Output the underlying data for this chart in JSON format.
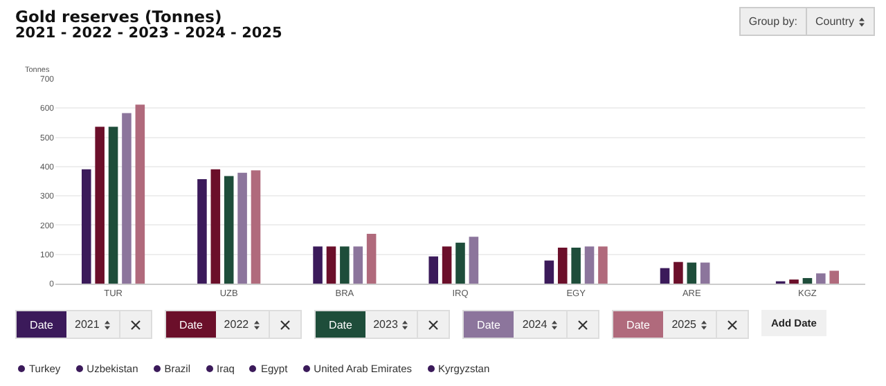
{
  "chart_data": {
    "type": "bar",
    "title": "Gold reserves (Tonnes)",
    "subtitle": "2021 - 2022 - 2023 - 2024 - 2025",
    "ylabel": "Tonnes",
    "categories": [
      "TUR",
      "UZB",
      "BRA",
      "IRQ",
      "EGY",
      "ARE",
      "KGZ"
    ],
    "series": [
      {
        "name": "2021",
        "color": "#3b1a5a",
        "values": [
          391,
          357,
          127,
          93,
          79,
          53,
          8
        ]
      },
      {
        "name": "2022",
        "color": "#6b0f2a",
        "values": [
          536,
          391,
          127,
          127,
          123,
          74,
          14
        ]
      },
      {
        "name": "2023",
        "color": "#1e4d3a",
        "values": [
          536,
          368,
          127,
          140,
          123,
          72,
          19
        ]
      },
      {
        "name": "2024",
        "color": "#8c759c",
        "values": [
          583,
          379,
          127,
          160,
          127,
          72,
          35
        ]
      },
      {
        "name": "2025",
        "color": "#b06a7c",
        "values": [
          612,
          387,
          170,
          null,
          127,
          null,
          44
        ]
      }
    ],
    "ylim": [
      0,
      700
    ],
    "yticks": [
      0,
      100,
      200,
      300,
      400,
      500,
      600,
      700
    ],
    "grid": "y",
    "legend": "bottom",
    "annotations": [
      "Group by:",
      "Country",
      "Date",
      "Add Date",
      "Turkey",
      "Uzbekistan",
      "Brazil",
      "Iraq",
      "Egypt",
      "United Arab Emirates",
      "Kyrgyzstan"
    ]
  }
}
